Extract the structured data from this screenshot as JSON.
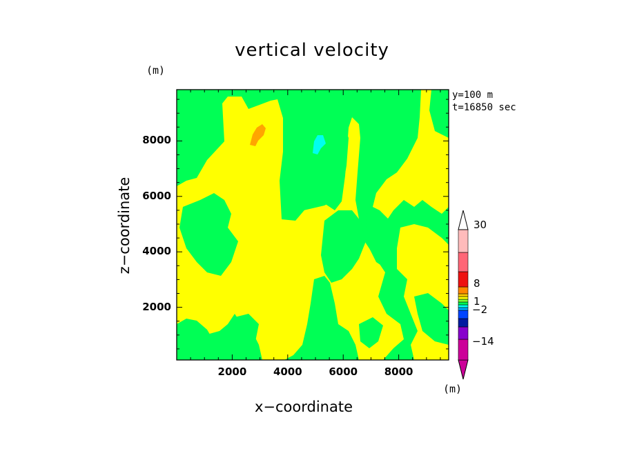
{
  "chart_data": {
    "type": "heatmap",
    "title": "vertical velocity",
    "xlabel": "x−coordinate",
    "ylabel": "z−coordinate",
    "unit_x": "(m)",
    "unit_y": "(m)",
    "info": [
      "y=100 m",
      "t=16850 sec"
    ],
    "xlim": [
      0,
      9800
    ],
    "ylim": [
      100,
      9850
    ],
    "x_ticks": [
      2000,
      4000,
      6000,
      8000
    ],
    "y_ticks": [
      2000,
      4000,
      6000,
      8000
    ],
    "x_tick_labels": [
      "2000",
      "4000",
      "6000",
      "8000"
    ],
    "y_tick_labels": [
      "2000",
      "4000",
      "6000",
      "8000"
    ],
    "colorbar": {
      "colors": [
        "#cc0099",
        "#8800cc",
        "#001aa0",
        "#0044ff",
        "#00aaff",
        "#00ffee",
        "#00ff55",
        "#7fff33",
        "#ffff00",
        "#ffcc00",
        "#ff8800",
        "#ee1111",
        "#ff6677",
        "#ffbbbb"
      ],
      "labels": [
        "30",
        "8",
        "1",
        "−2",
        "−14"
      ],
      "extend": "both"
    },
    "regions": {
      "background_color": "#00ff55",
      "colors": {
        "positive": "#ffff00",
        "strong_positive": "#ff9900",
        "negative": "#00ffee"
      }
    }
  }
}
